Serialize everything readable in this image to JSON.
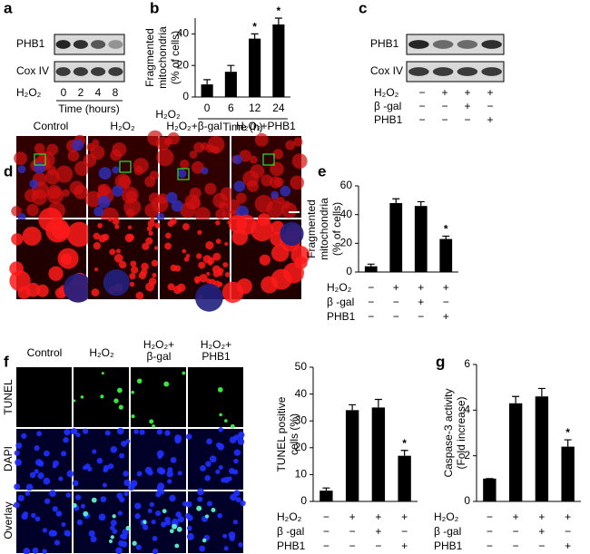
{
  "panel_labels": [
    "a",
    "b",
    "c",
    "d",
    "e",
    "f",
    "g"
  ],
  "blot_a": {
    "rows": [
      "PHB1",
      "Cox IV"
    ],
    "treatment_label": "H₂O₂",
    "lanes": [
      "0",
      "2",
      "4",
      "8"
    ],
    "xlabel": "Time (hours)"
  },
  "blot_c": {
    "rows": [
      "PHB1",
      "Cox IV"
    ],
    "treatments": [
      {
        "label": "H₂O₂",
        "marks": [
          "−",
          "+",
          "+",
          "+"
        ]
      },
      {
        "label": "β -gal",
        "marks": [
          "−",
          "−",
          "+",
          "−"
        ]
      },
      {
        "label": "PHB1",
        "marks": [
          "−",
          "−",
          "−",
          "+"
        ]
      }
    ]
  },
  "images_d": {
    "columns": [
      "Control",
      "H₂O₂",
      "H₂O₂+β-gal",
      "H₂O₂+PHB1"
    ]
  },
  "images_f": {
    "columns": [
      [
        "Control"
      ],
      [
        "H₂O₂"
      ],
      [
        "H₂O₂+",
        "β-gal"
      ],
      [
        "H₂O₂+",
        "PHB1"
      ]
    ],
    "rows": [
      "TUNEL",
      "DAPI",
      "Overlay"
    ]
  },
  "chart_data": [
    {
      "type": "bar",
      "ylabel": [
        "Fragmented",
        "mitochondria",
        "(% of cells)"
      ],
      "categories": [
        "0",
        "6",
        "12",
        "24"
      ],
      "x_prefix": "H₂O₂",
      "xlabel": "Time (h)",
      "values": [
        8,
        16,
        37,
        46
      ],
      "errors": [
        3,
        4,
        3,
        4
      ],
      "significance": [
        null,
        null,
        "*",
        "*"
      ],
      "ylim": [
        0,
        50
      ],
      "yticks": [
        0,
        20,
        40
      ],
      "color": "#000000"
    },
    {
      "type": "bar",
      "ylabel": [
        "Fragmented",
        "mitochondria",
        "(% of cells)"
      ],
      "values": [
        4,
        48,
        46,
        23
      ],
      "errors": [
        1.5,
        3,
        3,
        2
      ],
      "significance": [
        null,
        null,
        null,
        "*"
      ],
      "ylim": [
        0,
        60
      ],
      "yticks": [
        0,
        20,
        40,
        60
      ],
      "color": "#000000",
      "treatments": [
        {
          "label": "H₂O₂",
          "marks": [
            "−",
            "+",
            "+",
            "+"
          ]
        },
        {
          "label": "β -gal",
          "marks": [
            "−",
            "−",
            "+",
            "−"
          ]
        },
        {
          "label": "PHB1",
          "marks": [
            "−",
            "−",
            "−",
            "+"
          ]
        }
      ]
    },
    {
      "type": "bar",
      "ylabel": [
        "TUNEL positive",
        "cells (%)"
      ],
      "values": [
        4,
        34,
        35,
        17
      ],
      "errors": [
        1,
        2,
        3,
        2
      ],
      "significance": [
        null,
        null,
        null,
        "*"
      ],
      "ylim": [
        0,
        50
      ],
      "yticks": [
        0,
        10,
        20,
        30,
        40,
        50
      ],
      "color": "#000000",
      "treatments": [
        {
          "label": "H₂O₂",
          "marks": [
            "−",
            "+",
            "+",
            "+"
          ]
        },
        {
          "label": "β -gal",
          "marks": [
            "−",
            "−",
            "+",
            "−"
          ]
        },
        {
          "label": "PHB1",
          "marks": [
            "−",
            "−",
            "−",
            "+"
          ]
        }
      ]
    },
    {
      "type": "bar",
      "ylabel": [
        "Caspase-3 activity",
        "(Fold increase)"
      ],
      "values": [
        1,
        4.3,
        4.6,
        2.4
      ],
      "errors": [
        0,
        0.3,
        0.35,
        0.3
      ],
      "significance": [
        null,
        null,
        null,
        "*"
      ],
      "ylim": [
        0,
        6
      ],
      "yticks": [
        0,
        2,
        4,
        6
      ],
      "color": "#000000",
      "treatments": [
        {
          "label": "H₂O₂",
          "marks": [
            "−",
            "+",
            "+",
            "+"
          ]
        },
        {
          "label": "β -gal",
          "marks": [
            "−",
            "−",
            "+",
            "−"
          ]
        },
        {
          "label": "PHB1",
          "marks": [
            "−",
            "−",
            "−",
            "+"
          ]
        }
      ]
    }
  ]
}
